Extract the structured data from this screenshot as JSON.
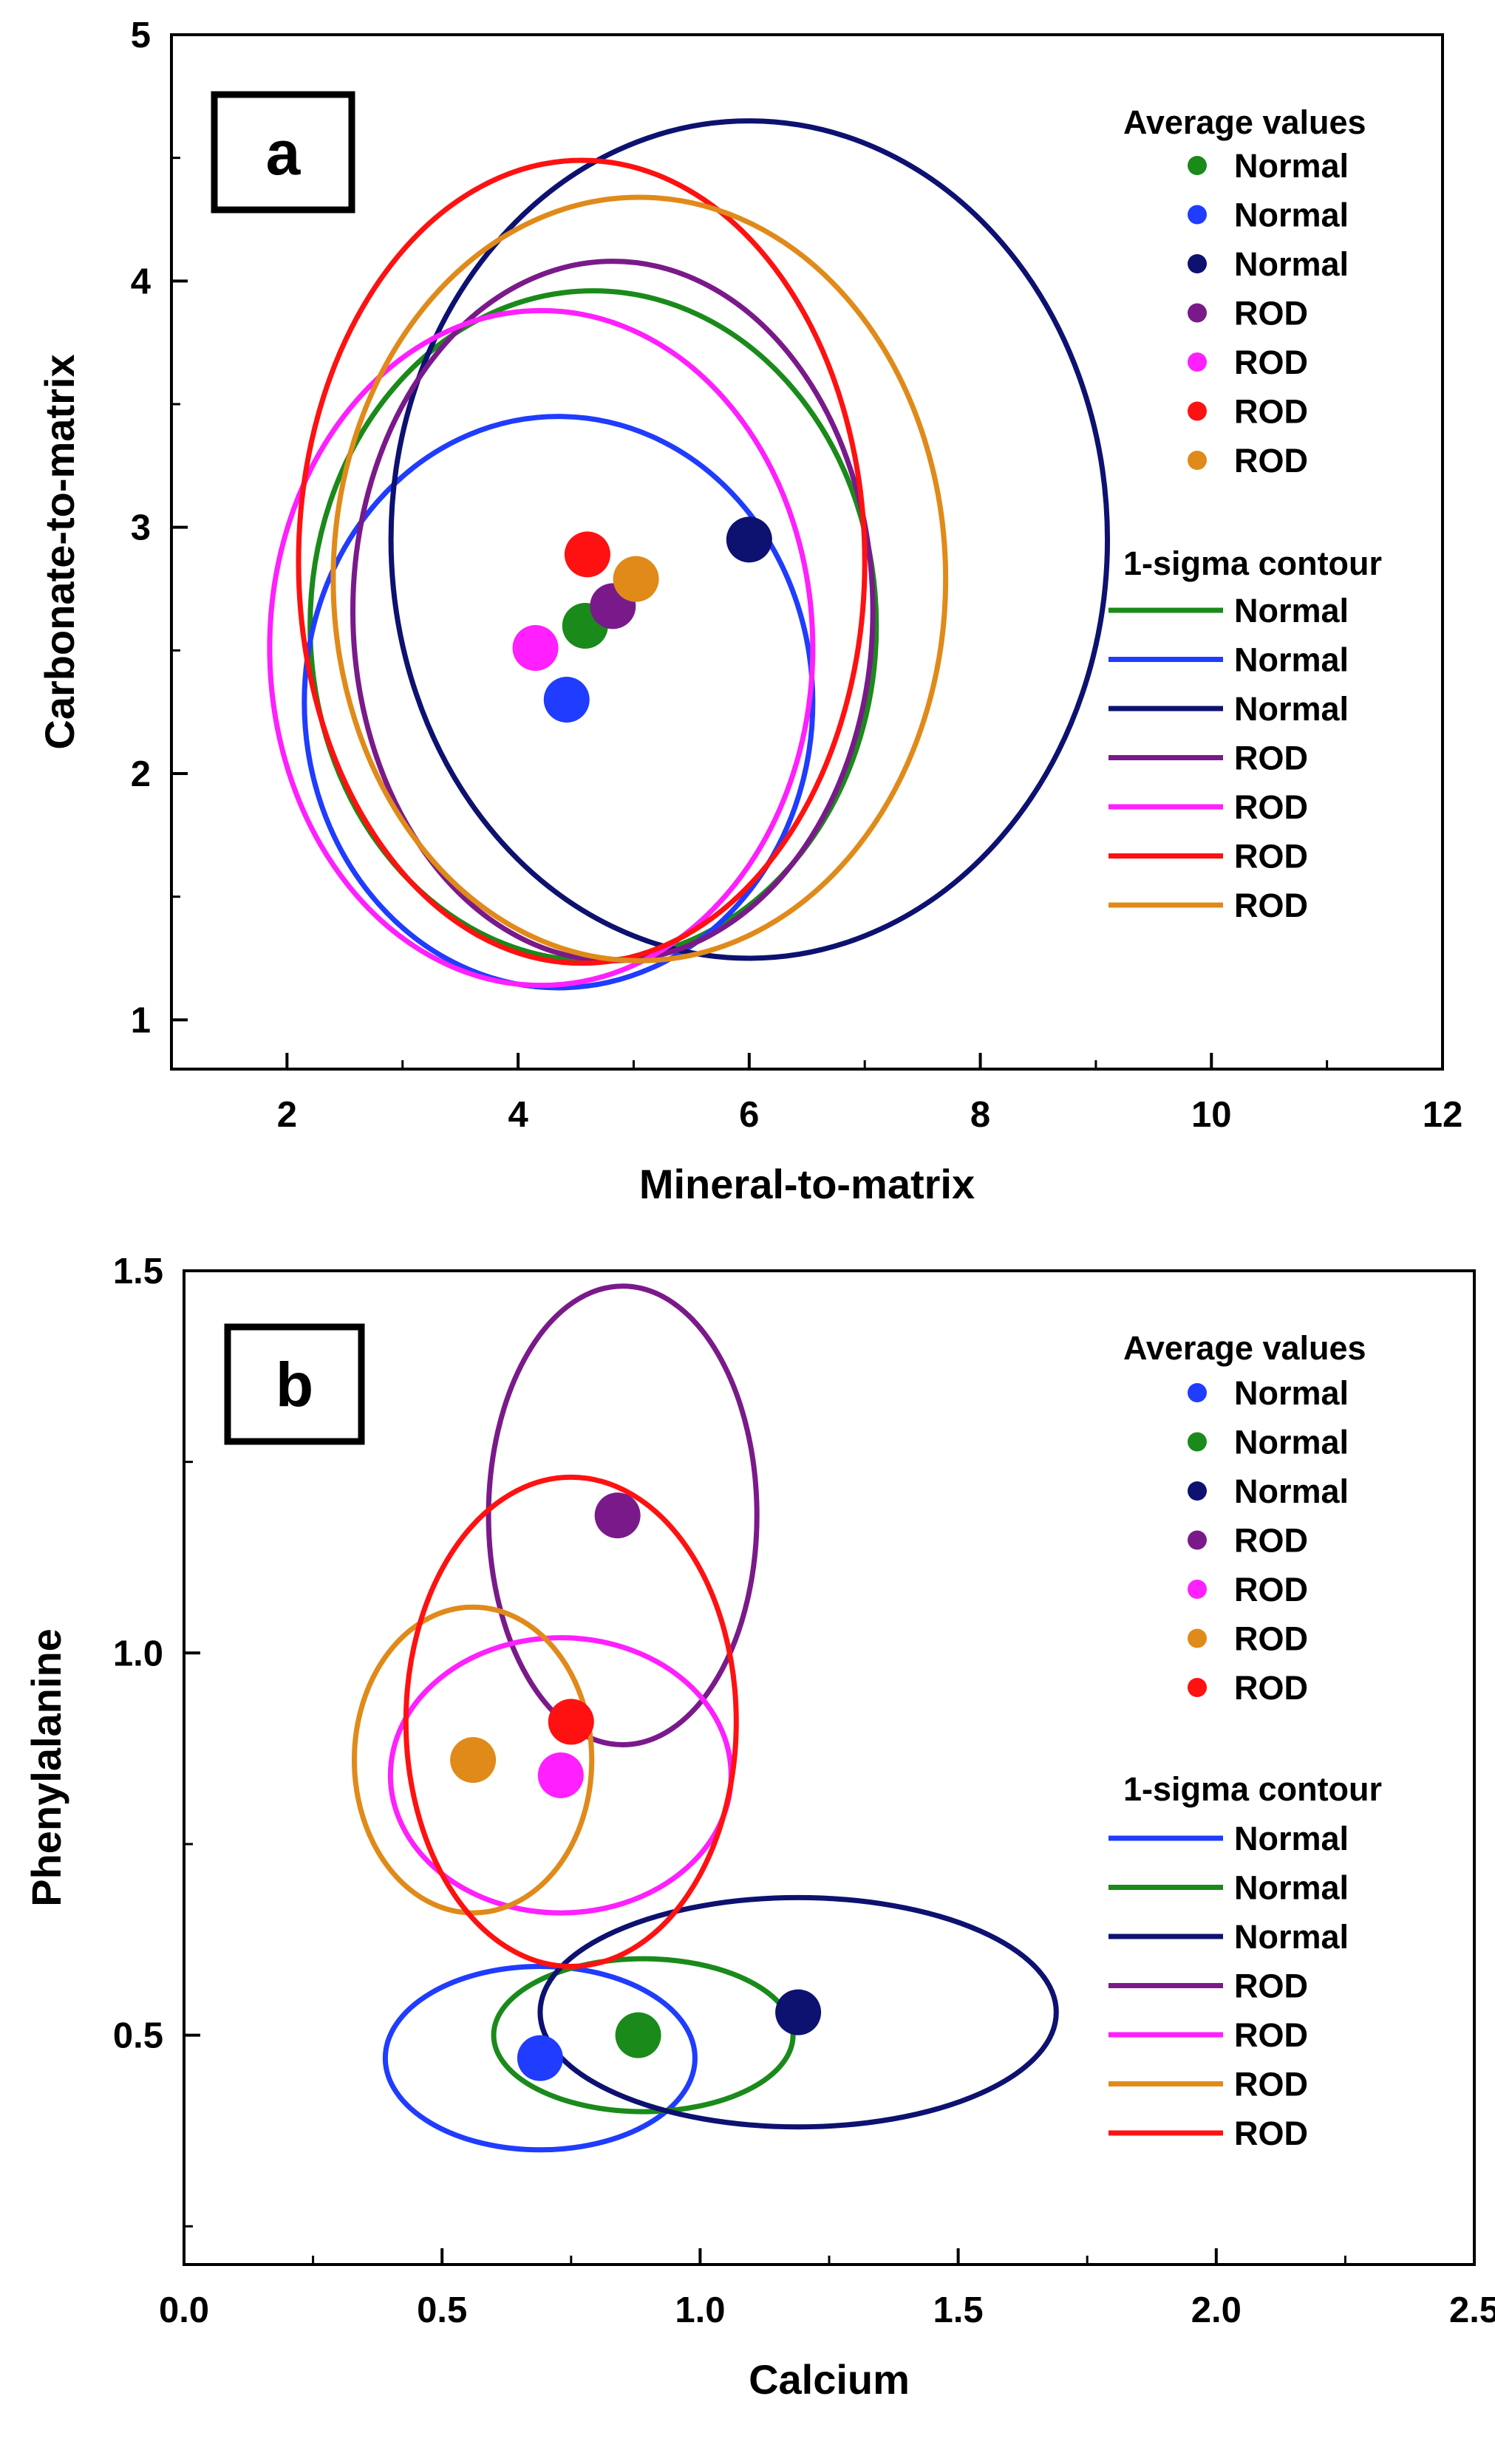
{
  "chart_data": [
    {
      "panel": "a",
      "type": "scatter",
      "xlabel": "Mineral-to-matrix",
      "ylabel": "Carbonate-to-matrix",
      "xlim": [
        1,
        12
      ],
      "ylim": [
        0.8,
        5
      ],
      "xticks": [
        2,
        4,
        6,
        8,
        10,
        12
      ],
      "yticks": [
        1,
        2,
        3,
        4,
        5
      ],
      "legend_points_heading": "Average values",
      "legend_contours_heading": "1-sigma contour",
      "series": [
        {
          "name": "Normal",
          "color": "#1a8a1a",
          "point": [
            4.58,
            2.6
          ],
          "ellipse": {
            "cx": 4.65,
            "cy": 2.6,
            "rx": 2.45,
            "ry": 1.36
          }
        },
        {
          "name": "Normal",
          "color": "#1f3cff",
          "point": [
            4.42,
            2.3
          ],
          "ellipse": {
            "cx": 4.35,
            "cy": 2.29,
            "rx": 2.2,
            "ry": 1.16
          }
        },
        {
          "name": "Normal",
          "color": "#0d1170",
          "point": [
            6.0,
            2.95
          ],
          "ellipse": {
            "cx": 6.0,
            "cy": 2.95,
            "rx": 3.1,
            "ry": 1.7
          }
        },
        {
          "name": "ROD",
          "color": "#7a1a8a",
          "point": [
            4.82,
            2.68
          ],
          "ellipse": {
            "cx": 4.82,
            "cy": 2.66,
            "rx": 2.25,
            "ry": 1.42
          }
        },
        {
          "name": "ROD",
          "color": "#ff1fff",
          "point": [
            4.15,
            2.51
          ],
          "ellipse": {
            "cx": 4.2,
            "cy": 2.51,
            "rx": 2.35,
            "ry": 1.37
          }
        },
        {
          "name": "ROD",
          "color": "#ff1111",
          "point": [
            4.6,
            2.89
          ],
          "ellipse": {
            "cx": 4.55,
            "cy": 2.86,
            "rx": 2.45,
            "ry": 1.63
          }
        },
        {
          "name": "ROD",
          "color": "#e08a1a",
          "point": [
            5.02,
            2.79
          ],
          "ellipse": {
            "cx": 5.05,
            "cy": 2.79,
            "rx": 2.65,
            "ry": 1.55
          }
        }
      ]
    },
    {
      "panel": "b",
      "type": "scatter",
      "xlabel": "Calcium",
      "ylabel": "Phenylalanine",
      "xlim": [
        0,
        2.5
      ],
      "ylim": [
        0.2,
        1.5
      ],
      "xticks": [
        "0.0",
        "0.5",
        "1.0",
        "1.5",
        "2.0",
        "2.5"
      ],
      "yticks": [
        "0.5",
        "1.0",
        "1.5"
      ],
      "legend_points_heading": "Average values",
      "legend_contours_heading": "1-sigma contour",
      "series": [
        {
          "name": "Normal",
          "color": "#1f3cff",
          "point": [
            0.69,
            0.47
          ],
          "ellipse": {
            "cx": 0.69,
            "cy": 0.47,
            "rx": 0.3,
            "ry": 0.12
          }
        },
        {
          "name": "Normal",
          "color": "#1a8a1a",
          "point": [
            0.88,
            0.5
          ],
          "ellipse": {
            "cx": 0.89,
            "cy": 0.5,
            "rx": 0.29,
            "ry": 0.1
          }
        },
        {
          "name": "Normal",
          "color": "#0d1170",
          "point": [
            1.19,
            0.53
          ],
          "ellipse": {
            "cx": 1.19,
            "cy": 0.53,
            "rx": 0.5,
            "ry": 0.15
          }
        },
        {
          "name": "ROD",
          "color": "#7a1a8a",
          "point": [
            0.84,
            1.18
          ],
          "ellipse": {
            "cx": 0.85,
            "cy": 1.18,
            "rx": 0.26,
            "ry": 0.3
          }
        },
        {
          "name": "ROD",
          "color": "#ff1fff",
          "point": [
            0.73,
            0.84
          ],
          "ellipse": {
            "cx": 0.73,
            "cy": 0.84,
            "rx": 0.33,
            "ry": 0.18
          }
        },
        {
          "name": "ROD",
          "color": "#e08a1a",
          "point": [
            0.56,
            0.86
          ],
          "ellipse": {
            "cx": 0.56,
            "cy": 0.86,
            "rx": 0.23,
            "ry": 0.2
          }
        },
        {
          "name": "ROD",
          "color": "#ff1111",
          "point": [
            0.75,
            0.91
          ],
          "ellipse": {
            "cx": 0.75,
            "cy": 0.91,
            "rx": 0.32,
            "ry": 0.32
          }
        }
      ]
    }
  ]
}
